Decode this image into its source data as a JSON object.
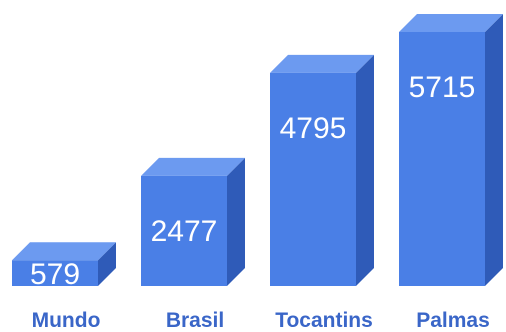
{
  "chart_data": {
    "type": "bar",
    "style": "3d-column",
    "title": "",
    "xlabel": "",
    "ylabel": "",
    "categories": [
      "Mundo",
      "Brasil",
      "Tocantins",
      "Palmas"
    ],
    "values": [
      579,
      2477,
      4795,
      5715
    ],
    "value_labels": [
      "579",
      "2477",
      "4795",
      "5715"
    ],
    "ylim": [
      0,
      5715
    ],
    "grid": false,
    "legend": "none",
    "colors": {
      "front": "#4a7fe6",
      "top": "#6c9af0",
      "side": "#2f5bb8",
      "label": "#3a66c8",
      "value_text": "#ffffff"
    }
  }
}
